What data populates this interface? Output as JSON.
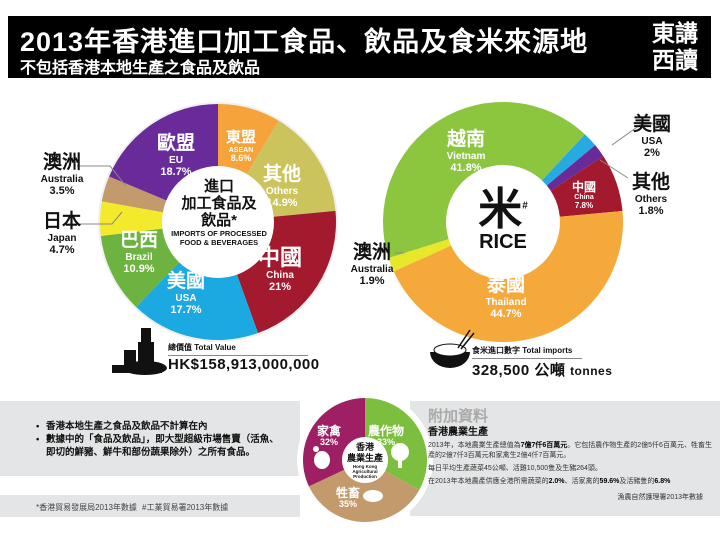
{
  "header": {
    "title": "2013年香港進口加工食品、飲品及食米來源地",
    "subtitle": "不包括香港本地生產之食品及飲品",
    "brand_line1": "東講",
    "brand_line2": "西讀"
  },
  "chart_data": [
    {
      "type": "pie",
      "donut": true,
      "center_title": {
        "zh_line1": "進口",
        "zh_line2": "加工食品及",
        "zh_line3": "飲品*",
        "en": "IMPORTS OF PROCESSED FOOD & BEVERAGES"
      },
      "unit": "%",
      "slices": [
        {
          "zh": "東盟",
          "en": "ASEAN",
          "value": 8.6,
          "label": "8.6%",
          "color": "#f5a33a"
        },
        {
          "zh": "其他",
          "en": "Others",
          "value": 14.9,
          "label": "14.9%",
          "color": "#cbc35c"
        },
        {
          "zh": "中國",
          "en": "China",
          "value": 21,
          "label": "21%",
          "color": "#a3192d"
        },
        {
          "zh": "美國",
          "en": "USA",
          "value": 17.7,
          "label": "17.7%",
          "color": "#1ca9e1"
        },
        {
          "zh": "巴西",
          "en": "Brazil",
          "value": 10.9,
          "label": "10.9%",
          "color": "#6cb33f"
        },
        {
          "zh": "日本",
          "en": "Japan",
          "value": 4.7,
          "label": "4.7%",
          "color": "#f2ea2b"
        },
        {
          "zh": "澳洲",
          "en": "Australia",
          "value": 3.5,
          "label": "3.5%",
          "color": "#c39a6b"
        },
        {
          "zh": "歐盟",
          "en": "EU",
          "value": 18.7,
          "label": "18.7%",
          "color": "#6a2b9a"
        }
      ],
      "total": {
        "label_zh": "總價值",
        "label_en": "Total Value",
        "value": "HK$158,913,000,000"
      }
    },
    {
      "type": "pie",
      "donut": true,
      "center_title": {
        "zh": "米",
        "mark": "#",
        "en": "RICE"
      },
      "unit": "%",
      "slices": [
        {
          "zh": "美國",
          "en": "USA",
          "value": 2,
          "label": "2%",
          "color": "#27aae1"
        },
        {
          "zh": "其他",
          "en": "Others",
          "value": 1.8,
          "label": "1.8%",
          "color": "#6a2b9a"
        },
        {
          "zh": "中國",
          "en": "China",
          "value": 7.8,
          "label": "7.8%",
          "color": "#a3192d"
        },
        {
          "zh": "泰國",
          "en": "Thailand",
          "value": 44.7,
          "label": "44.7%",
          "color": "#f6a93b"
        },
        {
          "zh": "澳洲",
          "en": "Australia",
          "value": 1.9,
          "label": "1.9%",
          "color": "#e9e72a"
        },
        {
          "zh": "越南",
          "en": "Vietnam",
          "value": 41.8,
          "label": "41.8%",
          "color": "#8cc63f"
        }
      ],
      "total": {
        "label_zh": "食米進口數字",
        "label_en": "Total imports",
        "value": "328,500 公噸",
        "unit": "tonnes"
      }
    },
    {
      "type": "pie",
      "donut": true,
      "center_title": {
        "zh_line1": "香港",
        "zh_line2": "農業生產",
        "en": "Hong Kong Agricultural Production"
      },
      "unit": "%",
      "slices": [
        {
          "zh": "農作物",
          "value": 33,
          "label": "33%",
          "color": "#7cbf3f"
        },
        {
          "zh": "牲畜",
          "value": 35,
          "label": "35%",
          "color": "#c39a6b"
        },
        {
          "zh": "家禽",
          "value": 32,
          "label": "32%",
          "color": "#9e1f63"
        }
      ]
    }
  ],
  "notes": [
    "香港本地生產之食品及飲品不計算在內",
    "數據中的「食品及飲品」，即大型超級市場售賣（活魚、即切的鮮豬、鮮牛和部份蔬果除外）之所有食品。"
  ],
  "footnotes": [
    "*香港貿易發展局2013年數據",
    "#工業貿易署2013年數據"
  ],
  "info": {
    "heading": "附加資料",
    "subheading": "香港農業生產",
    "p1_a": "2013年，本地農業生產總值為",
    "p1_b": "7億7仟6百萬元",
    "p1_c": "。它包括農作物生產的2億5仟6百萬元、牲畜生產的2億7仟3百萬元和家禽生2億4仟7百萬元。",
    "p2": "每日平均生產蔬菜45公噸、活雞10,500隻及生豬264頭。",
    "p3_a": "在2013年本地農產供應全港所需蔬菜的",
    "p3_b": "2.0%",
    "p3_c": "、活家禽的",
    "p3_d": "59.6%",
    "p3_e": "及活豬隻的",
    "p3_f": "6.8%",
    "source": "漁農自然護理署2013年數據"
  }
}
